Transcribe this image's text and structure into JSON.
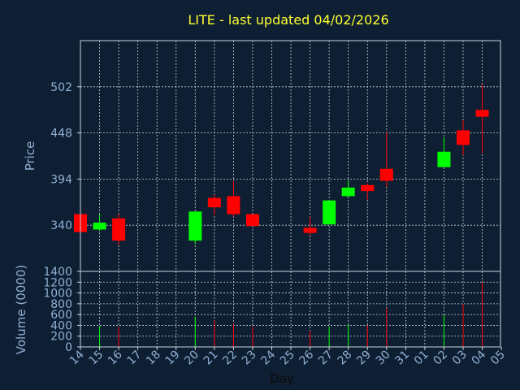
{
  "title": "LITE - last updated 04/02/2026",
  "colors": {
    "background": "#0f1f33",
    "frame": "#c8d2dc",
    "grid": "#c8d2dc",
    "up": "#00ff00",
    "down": "#ff0000",
    "title": "#ffff33",
    "tick": "#8fb0d3",
    "xlabel": "#0a0a0a"
  },
  "chart_data": [
    {
      "type": "candlestick",
      "ylabel": "Price",
      "xlabel": "",
      "y_ticks": [
        "340",
        "394",
        "448",
        "502"
      ],
      "y_tick_values": [
        340,
        394,
        448,
        502
      ],
      "ylim": [
        286,
        556
      ],
      "x_ticks": [
        "14",
        "15",
        "16",
        "17",
        "18",
        "19",
        "20",
        "21",
        "22",
        "23",
        "24",
        "25",
        "26",
        "27",
        "28",
        "29",
        "30",
        "31",
        "01",
        "02",
        "03",
        "04",
        "05"
      ],
      "grid": true,
      "candles": [
        {
          "x": "14",
          "open": 353,
          "close": 332,
          "high": 353,
          "low": 332
        },
        {
          "x": "15",
          "open": 335,
          "close": 343,
          "high": 353,
          "low": 333
        },
        {
          "x": "16",
          "open": 348,
          "close": 322,
          "high": 353,
          "low": 317
        },
        {
          "x": "20",
          "open": 322,
          "close": 356,
          "high": 356,
          "low": 318
        },
        {
          "x": "21",
          "open": 372,
          "close": 361,
          "high": 376,
          "low": 352
        },
        {
          "x": "22",
          "open": 374,
          "close": 353,
          "high": 392,
          "low": 350
        },
        {
          "x": "23",
          "open": 353,
          "close": 339,
          "high": 353,
          "low": 339
        },
        {
          "x": "26",
          "open": 337,
          "close": 331,
          "high": 350,
          "low": 328
        },
        {
          "x": "27",
          "open": 341,
          "close": 369,
          "high": 369,
          "low": 341
        },
        {
          "x": "28",
          "open": 374,
          "close": 384,
          "high": 393,
          "low": 373
        },
        {
          "x": "29",
          "open": 387,
          "close": 380,
          "high": 389,
          "low": 370
        },
        {
          "x": "30",
          "open": 406,
          "close": 392,
          "high": 449,
          "low": 385
        },
        {
          "x": "02",
          "open": 408,
          "close": 426,
          "high": 443,
          "low": 408
        },
        {
          "x": "03",
          "open": 451,
          "close": 434,
          "high": 463,
          "low": 422
        },
        {
          "x": "04",
          "open": 475,
          "close": 467,
          "high": 505,
          "low": 424
        }
      ]
    },
    {
      "type": "bar",
      "ylabel": "Volume (0000)",
      "xlabel": "Day",
      "y_ticks": [
        "0",
        "200",
        "400",
        "600",
        "800",
        "1000",
        "1200",
        "1400"
      ],
      "y_tick_values": [
        0,
        200,
        400,
        600,
        800,
        1000,
        1200,
        1400
      ],
      "ylim": [
        0,
        1400
      ],
      "x_ticks": [
        "14",
        "15",
        "16",
        "17",
        "18",
        "19",
        "20",
        "21",
        "22",
        "23",
        "24",
        "25",
        "26",
        "27",
        "28",
        "29",
        "30",
        "31",
        "01",
        "02",
        "03",
        "04",
        "05"
      ],
      "bars": [
        {
          "x": "14",
          "value": 0,
          "direction": "down"
        },
        {
          "x": "15",
          "value": 390,
          "direction": "up"
        },
        {
          "x": "16",
          "value": 370,
          "direction": "down"
        },
        {
          "x": "20",
          "value": 560,
          "direction": "up"
        },
        {
          "x": "21",
          "value": 490,
          "direction": "down"
        },
        {
          "x": "22",
          "value": 430,
          "direction": "down"
        },
        {
          "x": "23",
          "value": 380,
          "direction": "down"
        },
        {
          "x": "26",
          "value": 300,
          "direction": "down"
        },
        {
          "x": "27",
          "value": 380,
          "direction": "up"
        },
        {
          "x": "28",
          "value": 420,
          "direction": "up"
        },
        {
          "x": "29",
          "value": 400,
          "direction": "down"
        },
        {
          "x": "30",
          "value": 720,
          "direction": "down"
        },
        {
          "x": "02",
          "value": 590,
          "direction": "up"
        },
        {
          "x": "03",
          "value": 790,
          "direction": "down"
        },
        {
          "x": "04",
          "value": 1200,
          "direction": "down"
        }
      ]
    }
  ]
}
